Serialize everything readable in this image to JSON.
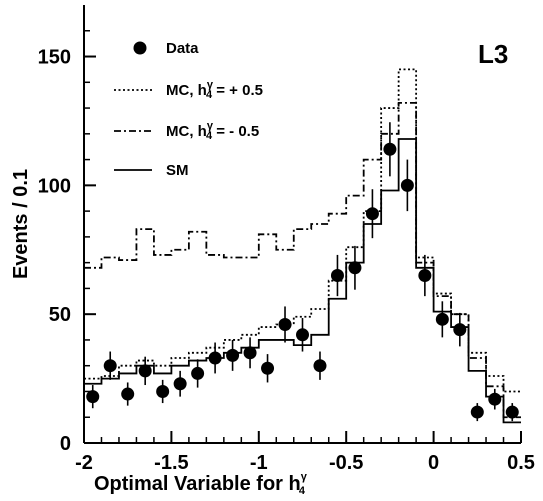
{
  "chart_data": {
    "type": "histogram",
    "experiment_label": "L3",
    "xlabel": {
      "main": "Optimal Variable for h",
      "sup": "γ",
      "sub": "4"
    },
    "ylabel": "Events / 0.1",
    "xlim": [
      -2.0,
      0.5
    ],
    "ylim": [
      0,
      170
    ],
    "xticks": [
      -2,
      -1.5,
      -1,
      -0.5,
      0,
      0.5
    ],
    "xtick_labels": [
      "-2",
      "-1.5",
      "-1",
      "-0.5",
      "0",
      "0.5"
    ],
    "yticks": [
      0,
      50,
      100,
      150
    ],
    "ytick_labels": [
      "0",
      "50",
      "100",
      "150"
    ],
    "bin_edges": [
      -2.0,
      -1.9,
      -1.8,
      -1.7,
      -1.6,
      -1.5,
      -1.4,
      -1.3,
      -1.2,
      -1.1,
      -1.0,
      -0.9,
      -0.8,
      -0.7,
      -0.6,
      -0.5,
      -0.4,
      -0.3,
      -0.2,
      -0.1,
      0.0,
      0.1,
      0.2,
      0.3,
      0.4,
      0.5
    ],
    "legend": {
      "position": "top-left",
      "data": "Data",
      "mc_plus": {
        "pre": "MC, h",
        "sup": "γ",
        "sub": "4",
        "post": " = + 0.5"
      },
      "mc_minus": {
        "pre": "MC, h",
        "sup": "γ",
        "sub": "4",
        "post": " = - 0.5"
      },
      "sm": "SM"
    },
    "series": [
      {
        "name": "Data",
        "kind": "points",
        "x": [
          -1.95,
          -1.85,
          -1.75,
          -1.65,
          -1.55,
          -1.45,
          -1.35,
          -1.25,
          -1.15,
          -1.05,
          -0.95,
          -0.85,
          -0.75,
          -0.65,
          -0.55,
          -0.45,
          -0.35,
          -0.25,
          -0.15,
          -0.05,
          0.05,
          0.15,
          0.25,
          0.35,
          0.45
        ],
        "y": [
          18,
          30,
          19,
          28,
          20,
          23,
          27,
          33,
          34,
          35,
          29,
          46,
          42,
          30,
          65,
          68,
          89,
          114,
          100,
          65,
          48,
          44,
          12,
          17,
          12
        ],
        "yerr": [
          4.5,
          5.5,
          4.5,
          5.5,
          4.5,
          5,
          5.5,
          6,
          6,
          6,
          5.5,
          7,
          6.5,
          5.5,
          8,
          8.5,
          9.5,
          10.5,
          10,
          8,
          7,
          6.5,
          3.5,
          4,
          3.5
        ]
      },
      {
        "name": "MC, h4 = + 0.5",
        "kind": "step",
        "style": "dotted",
        "values": [
          25,
          26,
          30,
          32,
          30,
          33,
          35,
          37,
          40,
          42,
          45,
          46,
          49,
          52,
          63,
          76,
          90,
          130,
          145,
          72,
          58,
          50,
          35,
          26,
          20
        ]
      },
      {
        "name": "MC, h4 = - 0.5",
        "kind": "step",
        "style": "dashdot",
        "values": [
          68,
          72,
          71,
          83,
          73,
          75,
          82,
          73,
          72,
          72,
          81,
          75,
          83,
          85,
          89,
          96,
          110,
          120,
          132,
          70,
          57,
          50,
          33,
          22,
          10
        ]
      },
      {
        "name": "SM",
        "kind": "step",
        "style": "solid",
        "values": [
          23,
          25,
          27,
          30,
          27,
          30,
          32,
          33,
          35,
          37,
          40,
          40,
          38,
          42,
          56,
          70,
          85,
          98,
          118,
          68,
          51,
          45,
          28,
          18,
          8
        ]
      }
    ]
  }
}
